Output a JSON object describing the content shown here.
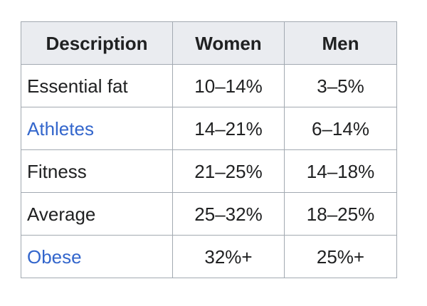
{
  "table": {
    "headers": [
      "Description",
      "Women",
      "Men"
    ],
    "rows": [
      {
        "description": "Essential fat",
        "women": "10–14%",
        "men": "3–5%",
        "is_link": false
      },
      {
        "description": "Athletes",
        "women": "14–21%",
        "men": "6–14%",
        "is_link": true
      },
      {
        "description": "Fitness",
        "women": "21–25%",
        "men": "14–18%",
        "is_link": false
      },
      {
        "description": "Average",
        "women": "25–32%",
        "men": "18–25%",
        "is_link": false
      },
      {
        "description": "Obese",
        "women": "32%+",
        "men": "25%+",
        "is_link": true
      }
    ]
  },
  "colors": {
    "link": "#3366cc",
    "header_bg": "#eaecf0",
    "border": "#a2a9b1",
    "text": "#202122"
  }
}
